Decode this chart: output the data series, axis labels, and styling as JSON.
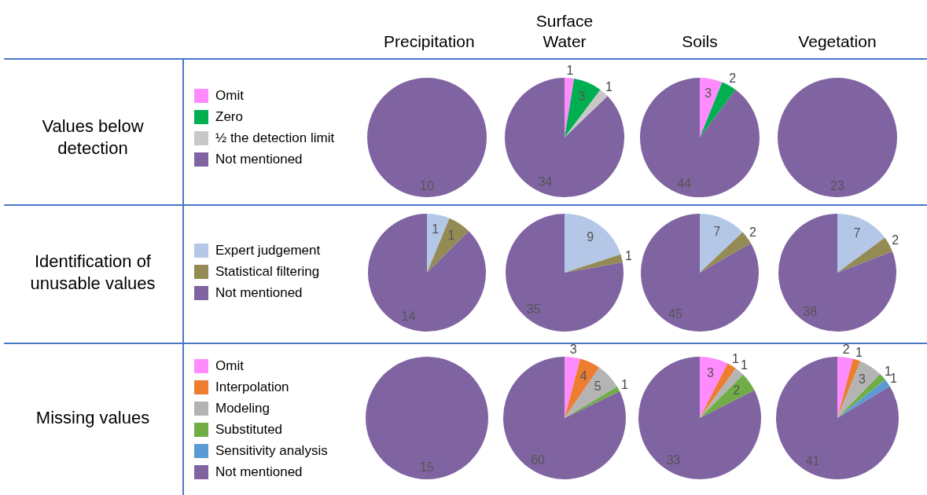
{
  "chart_data": [
    {
      "type": "pie",
      "title": "Precipitation",
      "ylabel": "Values below detection",
      "legend": "left",
      "categories": [
        "Omit",
        "Zero",
        "½ the detection limit",
        "Not mentioned"
      ],
      "values": [
        0,
        0,
        0,
        10
      ],
      "colors": [
        "#ff8cff",
        "#00b050",
        "#c8c8c8",
        "#8064a2"
      ],
      "value_labels": [
        null,
        null,
        null,
        "10"
      ]
    },
    {
      "type": "pie",
      "title": "Surface Water",
      "values": [
        1,
        3,
        1,
        34
      ],
      "colors": [
        "#ff8cff",
        "#00b050",
        "#c8c8c8",
        "#8064a2"
      ],
      "value_labels": [
        "1",
        "3",
        "1",
        "34"
      ]
    },
    {
      "type": "pie",
      "title": "Soils",
      "values": [
        3,
        2,
        0,
        44
      ],
      "colors": [
        "#ff8cff",
        "#00b050",
        "#c8c8c8",
        "#8064a2"
      ],
      "value_labels": [
        "3",
        "2",
        null,
        "44"
      ]
    },
    {
      "type": "pie",
      "title": "Vegetation",
      "values": [
        0,
        0,
        0,
        23
      ],
      "colors": [
        "#ff8cff",
        "#00b050",
        "#c8c8c8",
        "#8064a2"
      ],
      "value_labels": [
        null,
        null,
        null,
        "23"
      ]
    },
    {
      "type": "pie",
      "ylabel": "Identification of unusable values",
      "legend": "left",
      "categories": [
        "Expert judgement",
        "Statistical filtering",
        "Not mentioned"
      ],
      "values": [
        1,
        1,
        14
      ],
      "colors": [
        "#b4c7e7",
        "#948a54",
        "#8064a2"
      ],
      "value_labels": [
        "1",
        "1",
        "14"
      ]
    },
    {
      "type": "pie",
      "values": [
        9,
        1,
        35
      ],
      "colors": [
        "#b4c7e7",
        "#948a54",
        "#8064a2"
      ],
      "value_labels": [
        "9",
        "1",
        "35"
      ]
    },
    {
      "type": "pie",
      "values": [
        7,
        2,
        45
      ],
      "colors": [
        "#b4c7e7",
        "#948a54",
        "#8064a2"
      ],
      "value_labels": [
        "7",
        "2",
        "45"
      ]
    },
    {
      "type": "pie",
      "values": [
        7,
        2,
        38
      ],
      "colors": [
        "#b4c7e7",
        "#948a54",
        "#8064a2"
      ],
      "value_labels": [
        "7",
        "2",
        "38"
      ]
    },
    {
      "type": "pie",
      "ylabel": "Missing values",
      "legend": "left",
      "categories": [
        "Omit",
        "Interpolation",
        "Modeling",
        "Substituted",
        "Sensitivity analysis",
        "Not mentioned"
      ],
      "values": [
        0,
        0,
        0,
        0,
        0,
        15
      ],
      "colors": [
        "#ff8cff",
        "#ed7d31",
        "#b4b4b4",
        "#70ad47",
        "#5b9bd5",
        "#8064a2"
      ],
      "value_labels": [
        null,
        null,
        null,
        null,
        null,
        "15"
      ]
    },
    {
      "type": "pie",
      "values": [
        3,
        4,
        5,
        1,
        0,
        60
      ],
      "colors": [
        "#ff8cff",
        "#ed7d31",
        "#b4b4b4",
        "#70ad47",
        "#5b9bd5",
        "#8064a2"
      ],
      "value_labels": [
        "3",
        "4",
        "5",
        "1",
        null,
        "60"
      ]
    },
    {
      "type": "pie",
      "values": [
        3,
        1,
        1,
        2,
        0,
        33
      ],
      "colors": [
        "#ff8cff",
        "#ed7d31",
        "#b4b4b4",
        "#70ad47",
        "#5b9bd5",
        "#8064a2"
      ],
      "value_labels": [
        "3",
        "1",
        "1",
        "2",
        null,
        "33"
      ]
    },
    {
      "type": "pie",
      "values": [
        2,
        1,
        3,
        1,
        1,
        41
      ],
      "colors": [
        "#ff8cff",
        "#ed7d31",
        "#b4b4b4",
        "#70ad47",
        "#5b9bd5",
        "#8064a2"
      ],
      "value_labels": [
        "2",
        "1",
        "3",
        "1",
        "1",
        "41"
      ]
    }
  ]
}
